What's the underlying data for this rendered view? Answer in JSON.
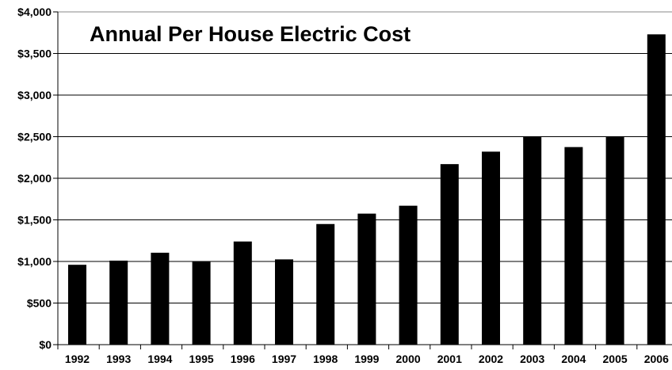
{
  "chart_data": {
    "type": "bar",
    "title": "Annual Per House Electric Cost",
    "xlabel": "",
    "ylabel": "",
    "categories": [
      "1992",
      "1993",
      "1994",
      "1995",
      "1996",
      "1997",
      "1998",
      "1999",
      "2000",
      "2001",
      "2002",
      "2003",
      "2004",
      "2005",
      "2006"
    ],
    "values": [
      960,
      1010,
      1105,
      1000,
      1240,
      1025,
      1450,
      1575,
      1670,
      2170,
      2320,
      2500,
      2375,
      2500,
      3730
    ],
    "ylim": [
      0,
      4000
    ],
    "yticks": [
      0,
      500,
      1000,
      1500,
      2000,
      2500,
      3000,
      3500,
      4000
    ],
    "ytick_labels": [
      "$0",
      "$500",
      "$1,000",
      "$1,500",
      "$2,000",
      "$2,500",
      "$3,000",
      "$3,500",
      "$4,000"
    ],
    "grid": true,
    "legend": "none",
    "bar_color": "#000000",
    "grid_color": "#000000"
  }
}
